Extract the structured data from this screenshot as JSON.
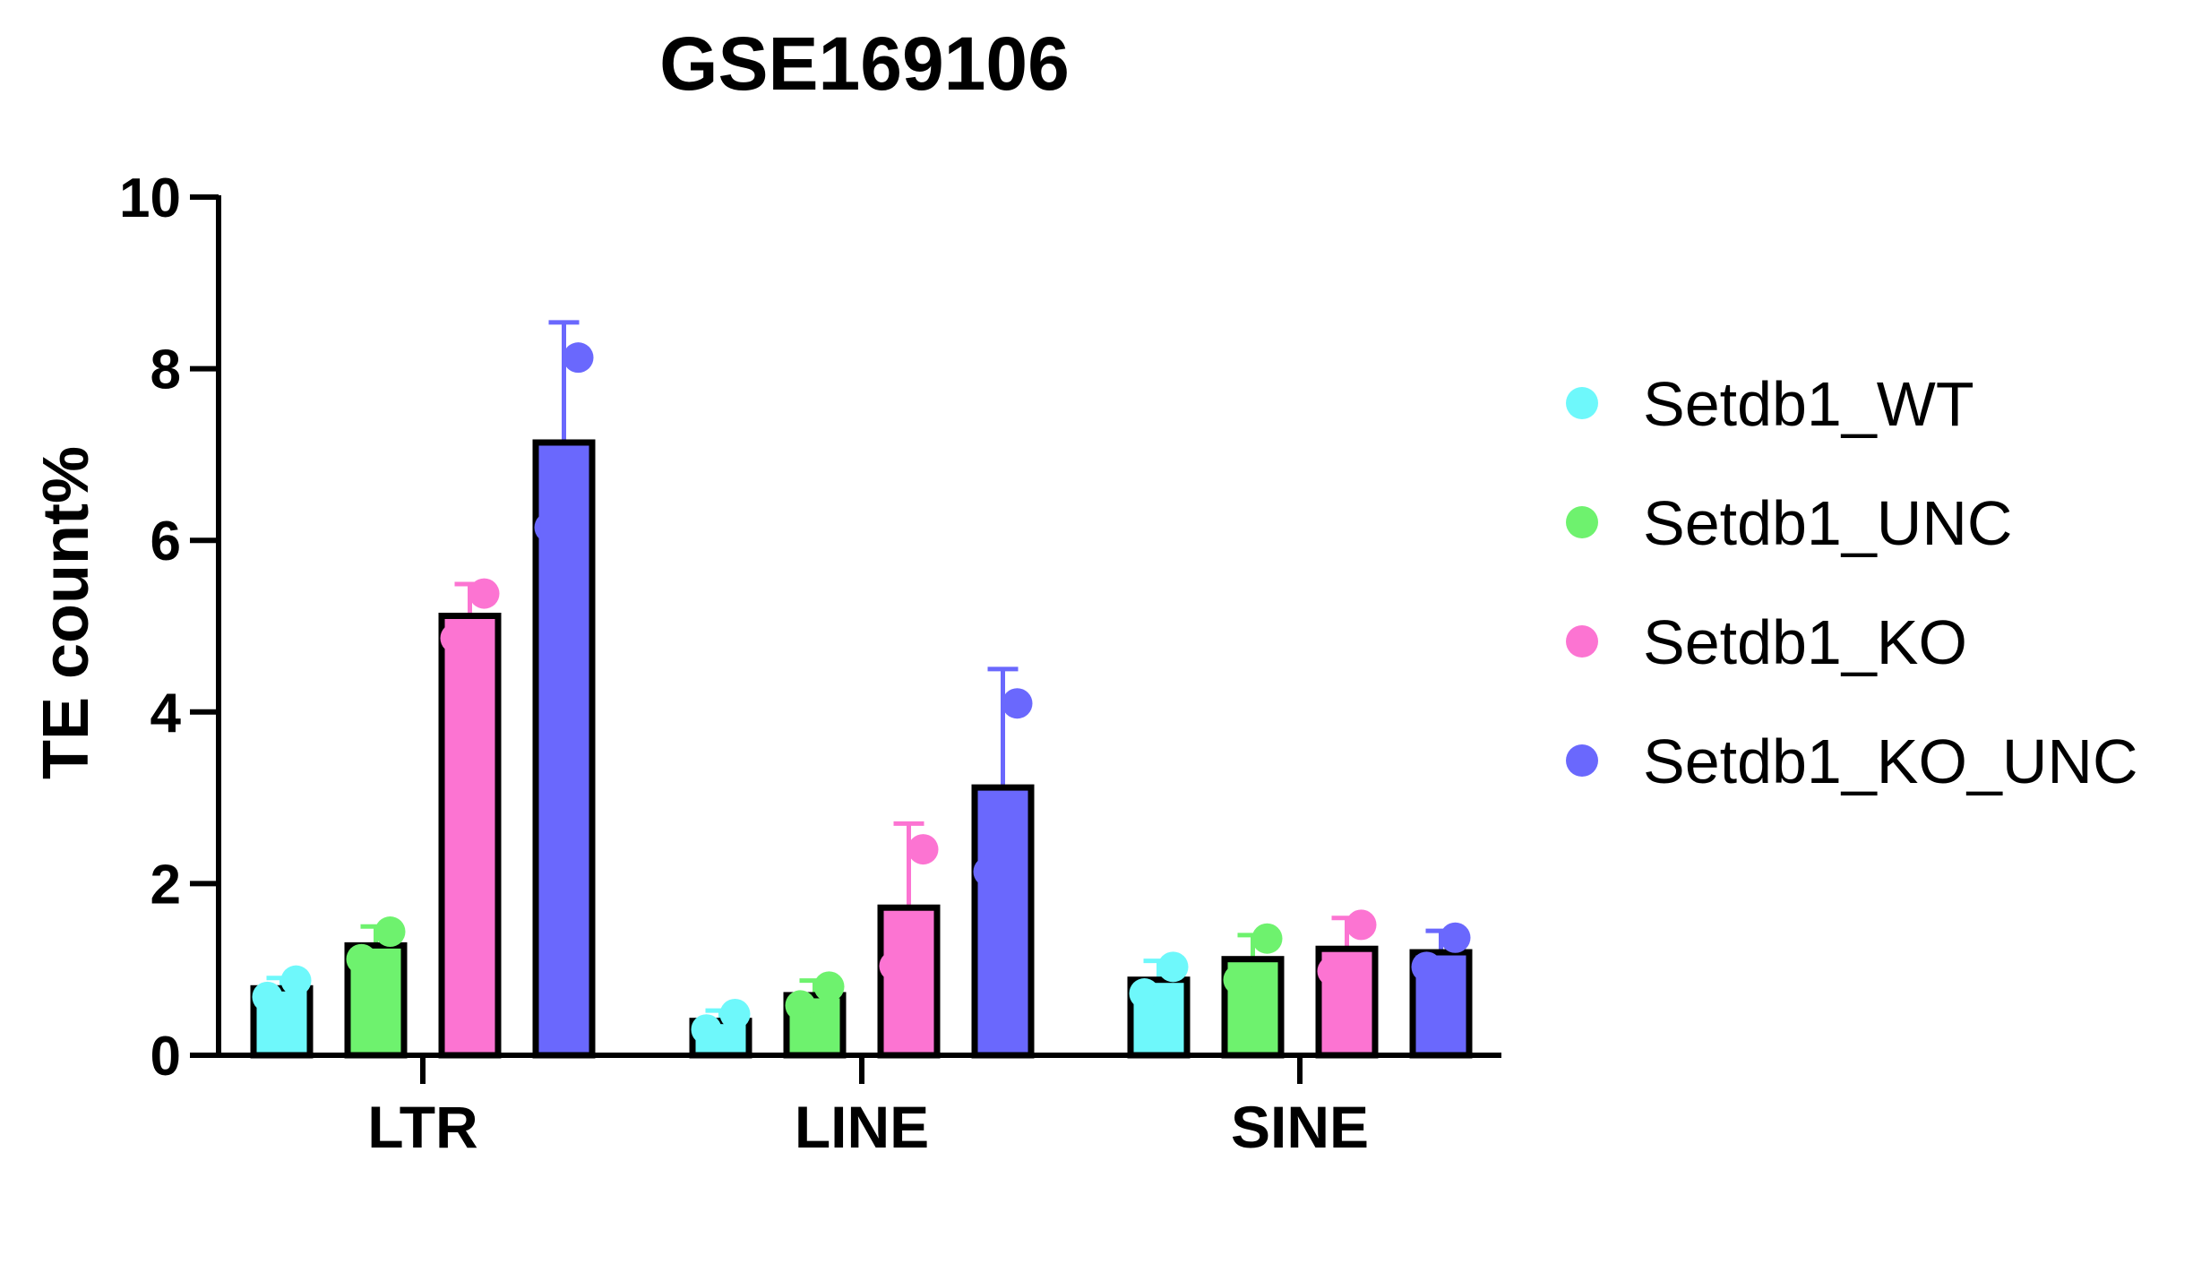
{
  "chart_data": {
    "type": "bar",
    "title": "GSE169106",
    "ylabel": "TE count%",
    "xlabel": "",
    "ylim": [
      0,
      10
    ],
    "yticks": [
      "0",
      "2",
      "4",
      "6",
      "8",
      "10"
    ],
    "categories": [
      "LTR",
      "LINE",
      "SINE"
    ],
    "error_bars": "upper, one-sided",
    "points_per_bar": 2,
    "legend_position": "right",
    "series": [
      {
        "name": "Setdb1_WT",
        "color": "#6ef8fb",
        "values": [
          0.78,
          0.4,
          0.88
        ],
        "errors": [
          0.12,
          0.12,
          0.22
        ],
        "points": [
          [
            0.68,
            0.87
          ],
          [
            0.3,
            0.48
          ],
          [
            0.72,
            1.03
          ]
        ]
      },
      {
        "name": "Setdb1_UNC",
        "color": "#6ef26e",
        "values": [
          1.28,
          0.7,
          1.12
        ],
        "errors": [
          0.22,
          0.17,
          0.28
        ],
        "points": [
          [
            1.12,
            1.44
          ],
          [
            0.58,
            0.8
          ],
          [
            0.88,
            1.36
          ]
        ]
      },
      {
        "name": "Setdb1_KO",
        "color": "#fc74d2",
        "values": [
          5.12,
          1.72,
          1.24
        ],
        "errors": [
          0.37,
          0.98,
          0.36
        ],
        "points": [
          [
            4.86,
            5.38
          ],
          [
            1.04,
            2.4
          ],
          [
            0.98,
            1.52
          ]
        ]
      },
      {
        "name": "Setdb1_KO_UNC",
        "color": "#6a68fd",
        "values": [
          7.14,
          3.12,
          1.2
        ],
        "errors": [
          1.4,
          1.38,
          0.25
        ],
        "points": [
          [
            6.15,
            8.13
          ],
          [
            2.14,
            4.1
          ],
          [
            1.03,
            1.37
          ]
        ]
      }
    ]
  }
}
